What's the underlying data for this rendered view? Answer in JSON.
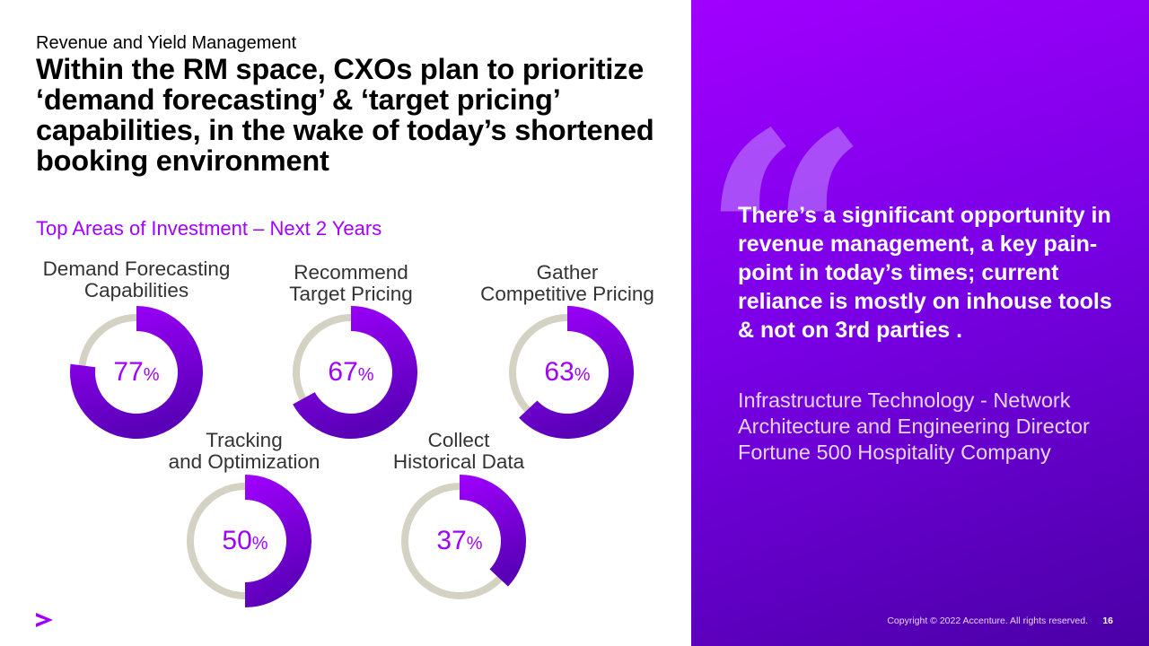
{
  "header": {
    "subtitle": "Revenue and Yield Management",
    "headline": "Within the RM space, CXOs plan to prioritize ‘demand forecasting’ & ‘target pricing’ capabilities, in the wake of today’s shortened booking environment"
  },
  "chart_data": {
    "type": "donut",
    "title": "Top Areas of Investment – Next 2 Years",
    "unit": "%",
    "colors": {
      "fill_start": "#a100ff",
      "fill_end": "#5a00b8",
      "track": "#d3d2c3"
    },
    "items": [
      {
        "label_line1": "Demand Forecasting",
        "label_line2": "Capabilities",
        "value": 77
      },
      {
        "label_line1": "Recommend",
        "label_line2": "Target Pricing",
        "value": 67
      },
      {
        "label_line1": "Gather",
        "label_line2": "Competitive Pricing",
        "value": 63
      },
      {
        "label_line1": "Tracking",
        "label_line2": "and Optimization",
        "value": 50
      },
      {
        "label_line1": "Collect",
        "label_line2": "Historical Data",
        "value": 37
      }
    ]
  },
  "quote": {
    "text": "There’s a significant opportunity in revenue management, a key pain-point in today’s times; current reliance is mostly on inhouse tools & not on 3rd parties .",
    "attribution_line1": "Infrastructure Technology - Network",
    "attribution_line2": "Architecture and Engineering Director",
    "attribution_line3": "Fortune 500 Hospitality Company"
  },
  "footer": {
    "copyright": "Copyright © 2022 Accenture. All rights reserved.",
    "page_number": "16"
  }
}
